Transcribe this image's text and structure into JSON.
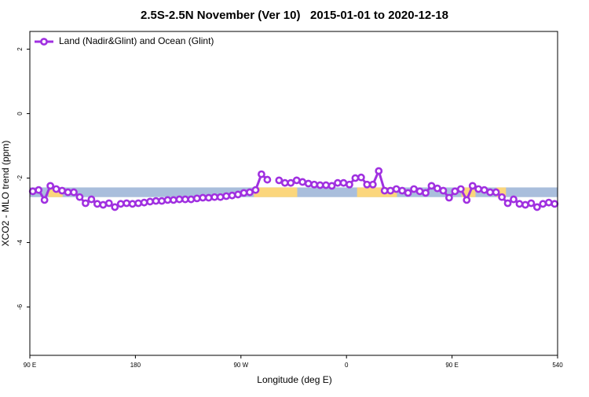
{
  "chart_data": {
    "type": "line",
    "title": "2.5S-2.5N November (Ver 10)   2015-01-01 to 2020-12-18",
    "xlabel": "Longitude (deg E)",
    "ylabel": "XCO2 - MLO trend (ppm)",
    "xlim": [
      90,
      540
    ],
    "ylim": [
      -7.5,
      2.55
    ],
    "xticks": [
      {
        "value": 90,
        "label": "90 E"
      },
      180,
      {
        "value": 270,
        "label": "90 W"
      },
      {
        "value": 360,
        "label": "0"
      },
      {
        "value": 450,
        "label": "90 E"
      },
      540
    ],
    "yticks": [
      2,
      0,
      -2,
      -4,
      -6
    ],
    "surface_band": {
      "ylim": [
        -2.59,
        -2.29
      ],
      "ocean_color": "#a9bedc",
      "land_color": "#fbd67c",
      "land_segments": [
        [
          106,
          118
        ],
        [
          281,
          318
        ],
        [
          369,
          403
        ],
        [
          458,
          470
        ],
        [
          488,
          496
        ]
      ]
    },
    "legend": "top-left",
    "x": [
      92.5,
      97.5,
      102.5,
      107.5,
      112.5,
      117.5,
      122.5,
      127.5,
      132.5,
      137.5,
      142.5,
      147.5,
      152.5,
      157.5,
      162.5,
      167.5,
      172.5,
      177.5,
      182.5,
      187.5,
      192.5,
      197.5,
      202.5,
      207.5,
      212.5,
      217.5,
      222.5,
      227.5,
      232.5,
      237.5,
      242.5,
      247.5,
      252.5,
      257.5,
      262.5,
      267.5,
      272.5,
      277.5,
      282.5,
      287.5,
      292.5,
      297.5,
      302.5,
      307.5,
      312.5,
      317.5,
      322.5,
      327.5,
      332.5,
      337.5,
      342.5,
      347.5,
      352.5,
      357.5,
      362.5,
      367.5,
      372.5,
      377.5,
      382.5,
      387.5,
      392.5,
      397.5,
      402.5,
      407.5,
      412.5,
      417.5,
      422.5,
      427.5,
      432.5,
      437.5,
      442.5,
      447.5,
      452.5,
      457.5,
      462.5,
      467.5,
      472.5,
      477.5,
      482.5,
      487.5,
      492.5,
      497.5,
      502.5,
      507.5,
      512.5,
      517.5,
      522.5,
      527.5,
      532.5,
      537.5
    ],
    "series": [
      {
        "name": "Land (Nadir&Glint) and Ocean (Glint)",
        "color": "#a030e0",
        "values": [
          -2.41,
          -2.37,
          -2.68,
          -2.24,
          -2.34,
          -2.39,
          -2.44,
          -2.44,
          -2.59,
          -2.78,
          -2.66,
          -2.8,
          -2.83,
          -2.78,
          -2.9,
          -2.8,
          -2.78,
          -2.8,
          -2.78,
          -2.76,
          -2.73,
          -2.71,
          -2.71,
          -2.68,
          -2.68,
          -2.66,
          -2.66,
          -2.66,
          -2.63,
          -2.61,
          -2.61,
          -2.59,
          -2.59,
          -2.56,
          -2.54,
          -2.51,
          -2.46,
          -2.44,
          -2.37,
          -1.88,
          -2.05,
          null,
          -2.07,
          -2.15,
          -2.15,
          -2.07,
          -2.12,
          -2.17,
          -2.2,
          -2.22,
          -2.22,
          -2.24,
          -2.15,
          -2.15,
          -2.2,
          -2.0,
          -1.98,
          -2.2,
          -2.2,
          -1.78,
          -2.39,
          -2.39,
          -2.34,
          -2.39,
          -2.46,
          -2.34,
          -2.41,
          -2.46,
          -2.24,
          -2.32,
          -2.39,
          -2.61,
          -2.41,
          -2.34,
          -2.68,
          -2.24,
          -2.34,
          -2.37,
          -2.44,
          -2.44,
          -2.59,
          -2.78,
          -2.66,
          -2.8,
          -2.83,
          -2.78,
          -2.9,
          -2.8,
          -2.76,
          -2.8
        ]
      }
    ]
  }
}
